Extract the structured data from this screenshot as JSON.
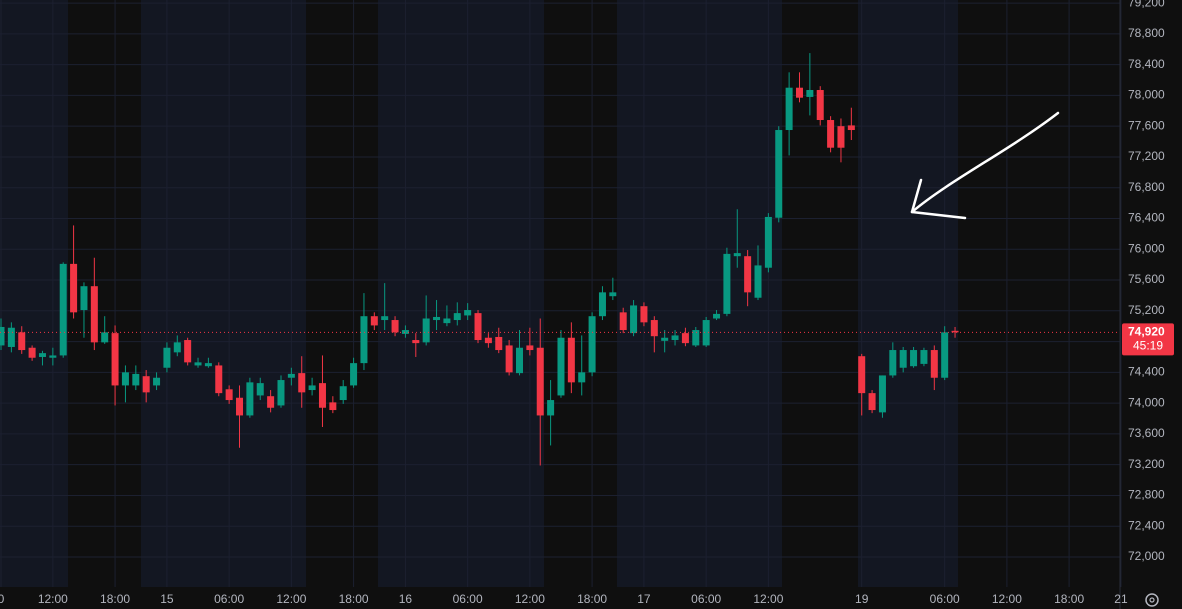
{
  "chart_data": {
    "type": "candlestick",
    "categories": [
      "0",
      null,
      null,
      null,
      null,
      "12:00",
      null,
      null,
      null,
      null,
      null,
      "18:00",
      null,
      null,
      null,
      null,
      "15",
      null,
      null,
      null,
      null,
      null,
      "06:00",
      null,
      null,
      null,
      null,
      null,
      "12:00",
      null,
      null,
      null,
      null,
      null,
      "18:00",
      null,
      null,
      null,
      null,
      "16",
      null,
      null,
      null,
      null,
      null,
      "06:00",
      null,
      null,
      null,
      null,
      null,
      "12:00",
      null,
      null,
      null,
      null,
      null,
      "18:00",
      null,
      null,
      null,
      null,
      "17",
      null,
      null,
      null,
      null,
      null,
      "06:00",
      null,
      null,
      null,
      null,
      null,
      "12:00",
      null,
      null,
      null,
      null,
      null,
      null,
      null,
      null,
      "19",
      null,
      null,
      null,
      null,
      null,
      null,
      null,
      "06:00",
      null,
      null,
      null,
      null,
      null,
      "12:00",
      null,
      null,
      null,
      null,
      null,
      "18:00",
      null,
      null,
      null,
      null,
      "21"
    ],
    "open": [
      74750,
      74730,
      74920,
      74720,
      74600,
      74590,
      74620,
      75810,
      75210,
      75520,
      74790,
      74910,
      74230,
      74230,
      74350,
      74230,
      74460,
      74660,
      74820,
      74490,
      74480,
      74490,
      74180,
      74070,
      73840,
      74100,
      74090,
      73970,
      74330,
      74390,
      74170,
      74260,
      74010,
      74040,
      74230,
      74520,
      75130,
      75080,
      75080,
      74900,
      74820,
      74790,
      75080,
      75040,
      75080,
      75140,
      75170,
      74850,
      74860,
      74750,
      74390,
      74750,
      74720,
      73840,
      74100,
      74850,
      74270,
      74400,
      75130,
      75390,
      75180,
      74910,
      75260,
      75080,
      74810,
      74820,
      74910,
      74750,
      74750,
      75100,
      75160,
      75910,
      75910,
      75370,
      75760,
      76410,
      77550,
      78100,
      77980,
      78070,
      77680,
      77600,
      77610,
      74610,
      74130,
      73880,
      74360,
      74460,
      74480,
      74510,
      74690,
      74330,
      74940,
      null,
      null,
      null,
      null,
      null,
      null,
      null,
      null,
      null,
      null,
      null,
      null,
      null,
      null,
      null,
      null
    ],
    "high": [
      75100,
      75050,
      75000,
      74750,
      74680,
      74720,
      75830,
      76310,
      75570,
      75890,
      75130,
      75010,
      74490,
      74490,
      74430,
      74400,
      74790,
      74880,
      74850,
      74590,
      74590,
      74530,
      74230,
      74230,
      74330,
      74330,
      74170,
      74360,
      74460,
      74610,
      74330,
      74620,
      74090,
      74300,
      74590,
      75430,
      75180,
      75560,
      75130,
      75010,
      74910,
      75400,
      75340,
      75270,
      75310,
      75300,
      75210,
      74910,
      74980,
      74820,
      74950,
      74980,
      75100,
      74300,
      74950,
      75050,
      74880,
      75180,
      75520,
      75630,
      75240,
      75340,
      75310,
      75130,
      74950,
      74950,
      74980,
      74990,
      75120,
      75210,
      76020,
      76520,
      75990,
      76050,
      76470,
      77600,
      78300,
      78300,
      78550,
      78120,
      77730,
      77700,
      77840,
      74640,
      74170,
      74360,
      74790,
      74730,
      74730,
      74720,
      74750,
      75000,
      74990,
      null,
      null,
      null,
      null,
      null,
      null,
      null,
      null,
      null,
      null,
      null,
      null,
      null,
      null,
      null,
      null
    ],
    "low": [
      74690,
      74660,
      74640,
      74550,
      74490,
      74490,
      74590,
      75100,
      74850,
      74690,
      74770,
      73970,
      74010,
      74170,
      74010,
      74170,
      74400,
      74610,
      74490,
      74460,
      74460,
      74090,
      73990,
      73420,
      73810,
      74040,
      73880,
      73940,
      74230,
      73940,
      74100,
      73690,
      73870,
      73990,
      74200,
      74430,
      74950,
      74950,
      74870,
      74850,
      74600,
      74750,
      74950,
      75000,
      75010,
      75080,
      74780,
      74720,
      74650,
      74360,
      74360,
      74620,
      73190,
      73450,
      74070,
      74130,
      74100,
      74350,
      75080,
      75340,
      74910,
      74870,
      75000,
      74660,
      74660,
      74750,
      74740,
      74730,
      74730,
      75080,
      75130,
      75760,
      75260,
      75340,
      75700,
      76350,
      77220,
      77910,
      77740,
      77610,
      77260,
      77130,
      77420,
      73840,
      73870,
      73810,
      74330,
      74400,
      74460,
      74480,
      74170,
      74300,
      74850,
      null,
      null,
      null,
      null,
      null,
      null,
      null,
      null,
      null,
      null,
      null,
      null,
      null,
      null,
      null,
      null
    ],
    "close": [
      74990,
      74980,
      74690,
      74590,
      74650,
      74620,
      75810,
      75180,
      75520,
      74790,
      74920,
      74230,
      74400,
      74380,
      74140,
      74330,
      74720,
      74790,
      74530,
      74530,
      74520,
      74130,
      74040,
      73840,
      74270,
      74260,
      73940,
      74300,
      74380,
      74140,
      74230,
      73940,
      73910,
      74220,
      74520,
      75130,
      75010,
      75130,
      74920,
      74950,
      74780,
      75100,
      75120,
      75100,
      75170,
      75210,
      74820,
      74780,
      74690,
      74400,
      74720,
      74690,
      73840,
      74040,
      74850,
      74270,
      74400,
      75130,
      75440,
      75440,
      74950,
      75270,
      75050,
      74870,
      74850,
      74880,
      74780,
      74950,
      75080,
      75160,
      75940,
      75950,
      75440,
      75790,
      76420,
      77550,
      78100,
      77970,
      78070,
      77680,
      77320,
      77320,
      77550,
      74130,
      73910,
      74360,
      74690,
      74690,
      74690,
      74690,
      74330,
      74920,
      74920,
      null,
      null,
      null,
      null,
      null,
      null,
      null,
      null,
      null,
      null,
      null,
      null,
      null,
      null,
      null,
      null
    ],
    "up_color": "#089981",
    "down_color": "#f23645",
    "ylim": [
      71610,
      79240
    ],
    "yticks": [
      {
        "value": 72000,
        "label": "72,000"
      },
      {
        "value": 72400,
        "label": "72,400"
      },
      {
        "value": 72800,
        "label": "72,800"
      },
      {
        "value": 73200,
        "label": "73,200"
      },
      {
        "value": 73600,
        "label": "73,600"
      },
      {
        "value": 74000,
        "label": "74,000"
      },
      {
        "value": 74400,
        "label": "74,400"
      },
      {
        "value": 74800,
        "label": "74,800"
      },
      {
        "value": 75200,
        "label": "75,200"
      },
      {
        "value": 75600,
        "label": "75,600"
      },
      {
        "value": 76000,
        "label": "76,000"
      },
      {
        "value": 76400,
        "label": "76,400"
      },
      {
        "value": 76800,
        "label": "76,800"
      },
      {
        "value": 77200,
        "label": "77,200"
      },
      {
        "value": 77600,
        "label": "77,600"
      },
      {
        "value": 78000,
        "label": "78,000"
      },
      {
        "value": 78400,
        "label": "78,400"
      },
      {
        "value": 78800,
        "label": "78,800"
      },
      {
        "value": 79200,
        "label": "79,200"
      }
    ],
    "grid": true,
    "last_price": {
      "value": 74920,
      "label": "74,920"
    },
    "countdown": "45:19"
  }
}
